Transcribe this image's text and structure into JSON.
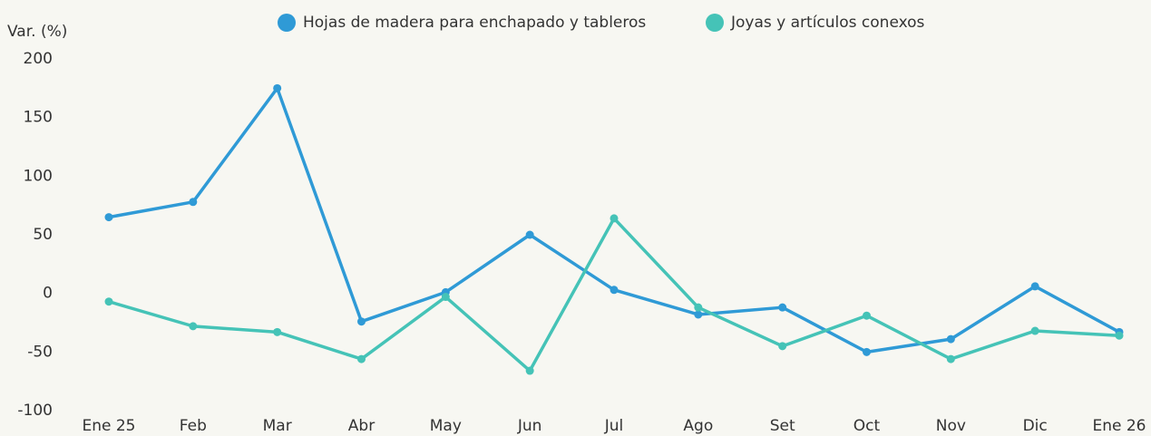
{
  "chart_data": {
    "type": "line",
    "y_label": "Var. (%)",
    "categories": [
      "Ene 25",
      "Feb",
      "Mar",
      "Abr",
      "May",
      "Jun",
      "Jul",
      "Ago",
      "Set",
      "Oct",
      "Nov",
      "Dic",
      "Ene 26"
    ],
    "series": [
      {
        "name": "Hojas de madera para enchapado y tableros",
        "color": "#2f9ad6",
        "values": [
          65,
          78,
          175,
          -24,
          1,
          50,
          3,
          -18,
          -12,
          -50,
          -39,
          6,
          -33
        ]
      },
      {
        "name": "Joyas y artículos conexos",
        "color": "#45c3b7",
        "values": [
          -7,
          -28,
          -33,
          -56,
          -3,
          -66,
          64,
          -12,
          -45,
          -19,
          -56,
          -32,
          -36
        ]
      }
    ],
    "ylim": [
      -100,
      200
    ],
    "yticks": [
      -100,
      -50,
      0,
      50,
      100,
      150,
      200
    ],
    "grid": false,
    "legend": "top"
  }
}
